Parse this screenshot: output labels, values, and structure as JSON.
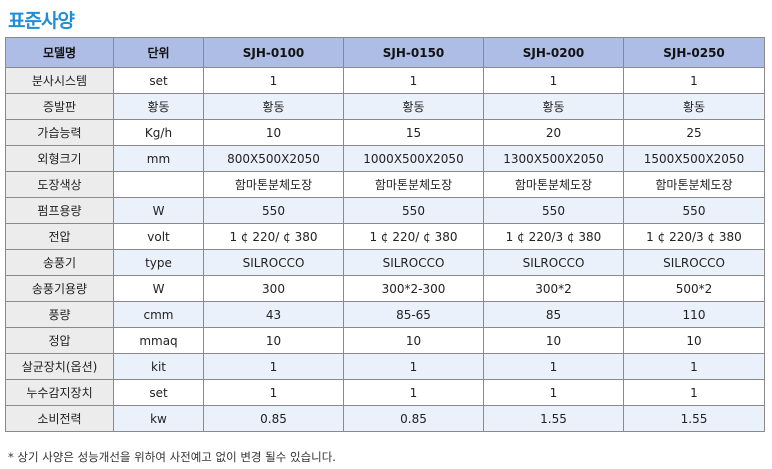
{
  "title": "표준사양",
  "headers": [
    "모델명",
    "단위",
    "SJH-0100",
    "SJH-0150",
    "SJH-0200",
    "SJH-0250"
  ],
  "rows": [
    [
      "분사시스템",
      "set",
      "1",
      "1",
      "1",
      "1"
    ],
    [
      "증발판",
      "황동",
      "황동",
      "황동",
      "황동",
      "황동"
    ],
    [
      "가습능력",
      "Kg/h",
      "10",
      "15",
      "20",
      "25"
    ],
    [
      "외형크기",
      "mm",
      "800X500X2050",
      "1000X500X2050",
      "1300X500X2050",
      "1500X500X2050"
    ],
    [
      "도장색상",
      "",
      "함마톤분체도장",
      "함마톤분체도장",
      "함마톤분체도장",
      "함마톤분체도장"
    ],
    [
      "펌프용량",
      "W",
      "550",
      "550",
      "550",
      "550"
    ],
    [
      "전압",
      "volt",
      "1 ¢ 220/ ¢ 380",
      "1 ¢ 220/ ¢ 380",
      "1 ¢ 220/3 ¢ 380",
      "1 ¢ 220/3 ¢ 380"
    ],
    [
      "송풍기",
      "type",
      "SILROCCO",
      "SILROCCO",
      "SILROCCO",
      "SILROCCO"
    ],
    [
      "송풍기용량",
      "W",
      "300",
      "300*2-300",
      "300*2",
      "500*2"
    ],
    [
      "풍량",
      "cmm",
      "43",
      "85-65",
      "85",
      "110"
    ],
    [
      "정압",
      "mmaq",
      "10",
      "10",
      "10",
      "10"
    ],
    [
      "살균장치(옵션)",
      "kit",
      "1",
      "1",
      "1",
      "1"
    ],
    [
      "누수감지장치",
      "set",
      "1",
      "1",
      "1",
      "1"
    ],
    [
      "소비전력",
      "kw",
      "0.85",
      "0.85",
      "1.55",
      "1.55"
    ]
  ],
  "note": "* 상기 사양은 성능개선을 위하여 사전예고 없이 변경 될수 있습니다."
}
